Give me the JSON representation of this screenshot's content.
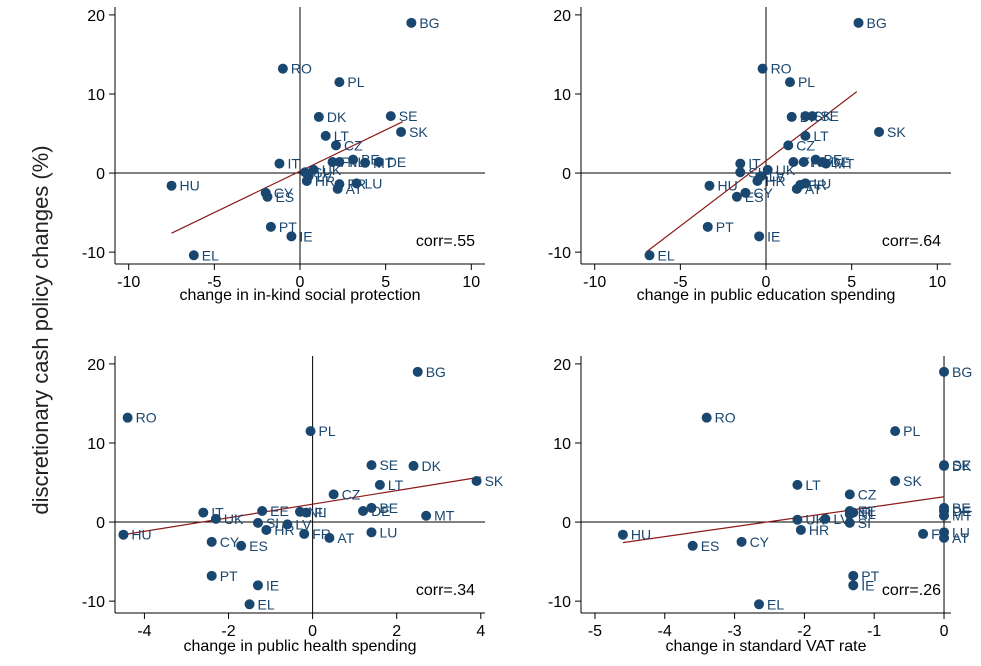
{
  "figure": {
    "ylabel": "discretionary cash policy changes (%)",
    "colors": {
      "point": "#1a476f",
      "fit": "#8b1a1a",
      "axis": "#000000",
      "label": "#1a476f"
    }
  },
  "chart_data": [
    {
      "type": "scatter",
      "xlabel": "change in in-kind social protection",
      "xlim": [
        -10.8,
        10.8
      ],
      "ylim": [
        -11.5,
        21
      ],
      "xticks": [
        -10,
        -5,
        0,
        5,
        10
      ],
      "yticks": [
        -10,
        0,
        10,
        20
      ],
      "annotation": "corr=.55",
      "fit_line": {
        "x": [
          -7.5,
          6.0
        ],
        "y": [
          -7.6,
          6.5
        ]
      },
      "points": [
        {
          "label": "BG",
          "x": 6.5,
          "y": 19.0
        },
        {
          "label": "RO",
          "x": -1.0,
          "y": 13.2
        },
        {
          "label": "PL",
          "x": 2.3,
          "y": 11.5
        },
        {
          "label": "DK",
          "x": 1.1,
          "y": 7.1
        },
        {
          "label": "SE",
          "x": 5.3,
          "y": 7.2
        },
        {
          "label": "SK",
          "x": 5.9,
          "y": 5.2
        },
        {
          "label": "LT",
          "x": 1.5,
          "y": 4.7
        },
        {
          "label": "CZ",
          "x": 2.1,
          "y": 3.5
        },
        {
          "label": "BE",
          "x": 3.1,
          "y": 1.7
        },
        {
          "label": "FI",
          "x": 1.9,
          "y": 1.4
        },
        {
          "label": "NL",
          "x": 2.3,
          "y": 1.4
        },
        {
          "label": "MT",
          "x": 3.8,
          "y": 1.3
        },
        {
          "label": "DE",
          "x": 4.6,
          "y": 1.4
        },
        {
          "label": "IT",
          "x": -1.2,
          "y": 1.2
        },
        {
          "label": "SI",
          "x": 0.3,
          "y": 0.1
        },
        {
          "label": "UK",
          "x": 0.8,
          "y": 0.4
        },
        {
          "label": "LV",
          "x": 0.5,
          "y": -0.4
        },
        {
          "label": "HR",
          "x": 0.4,
          "y": -1.0
        },
        {
          "label": "FR",
          "x": 2.3,
          "y": -1.4
        },
        {
          "label": "AT",
          "x": 2.2,
          "y": -2.0
        },
        {
          "label": "LU",
          "x": 3.3,
          "y": -1.3
        },
        {
          "label": "HU",
          "x": -7.5,
          "y": -1.6
        },
        {
          "label": "CY",
          "x": -2.0,
          "y": -2.5
        },
        {
          "label": "ES",
          "x": -1.9,
          "y": -3.0
        },
        {
          "label": "PT",
          "x": -1.7,
          "y": -6.8
        },
        {
          "label": "IE",
          "x": -0.5,
          "y": -8.0
        },
        {
          "label": "EL",
          "x": -6.2,
          "y": -10.4
        }
      ]
    },
    {
      "type": "scatter",
      "xlabel": "change in public education spending",
      "xlim": [
        -10.8,
        10.8
      ],
      "ylim": [
        -11.5,
        21
      ],
      "xticks": [
        -10,
        -5,
        0,
        5,
        10
      ],
      "yticks": [
        -10,
        0,
        10,
        20
      ],
      "annotation": "corr=.64",
      "fit_line": {
        "x": [
          -7.0,
          5.3
        ],
        "y": [
          -10.0,
          10.3
        ]
      },
      "points": [
        {
          "label": "BG",
          "x": 5.4,
          "y": 19.0
        },
        {
          "label": "RO",
          "x": -0.2,
          "y": 13.2
        },
        {
          "label": "PL",
          "x": 1.4,
          "y": 11.5
        },
        {
          "label": "DK",
          "x": 1.5,
          "y": 7.1
        },
        {
          "label": "SK",
          "x": 2.3,
          "y": 7.2
        },
        {
          "label": "SE",
          "x": 2.7,
          "y": 7.2
        },
        {
          "label": "SK",
          "x": 6.6,
          "y": 5.2
        },
        {
          "label": "LT",
          "x": 2.3,
          "y": 4.7
        },
        {
          "label": "CZ",
          "x": 1.3,
          "y": 3.5
        },
        {
          "label": "BE",
          "x": 2.9,
          "y": 1.7
        },
        {
          "label": "FI",
          "x": 1.6,
          "y": 1.4
        },
        {
          "label": "NL",
          "x": 2.2,
          "y": 1.4
        },
        {
          "label": "MT",
          "x": 3.5,
          "y": 1.2
        },
        {
          "label": "DE",
          "x": 3.3,
          "y": 1.4
        },
        {
          "label": "IT",
          "x": -1.5,
          "y": 1.2
        },
        {
          "label": "SI",
          "x": -1.5,
          "y": 0.1
        },
        {
          "label": "UK",
          "x": 0.1,
          "y": 0.4
        },
        {
          "label": "LV",
          "x": -0.3,
          "y": -0.4
        },
        {
          "label": "HR",
          "x": -0.5,
          "y": -1.0
        },
        {
          "label": "FR",
          "x": 2.0,
          "y": -1.5
        },
        {
          "label": "AT",
          "x": 1.8,
          "y": -2.0
        },
        {
          "label": "LU",
          "x": 2.3,
          "y": -1.3
        },
        {
          "label": "HU",
          "x": -3.3,
          "y": -1.6
        },
        {
          "label": "CY",
          "x": -1.2,
          "y": -2.5
        },
        {
          "label": "ES",
          "x": -1.7,
          "y": -3.0
        },
        {
          "label": "PT",
          "x": -3.4,
          "y": -6.8
        },
        {
          "label": "IE",
          "x": -0.4,
          "y": -8.0
        },
        {
          "label": "EL",
          "x": -6.8,
          "y": -10.4
        }
      ]
    },
    {
      "type": "scatter",
      "xlabel": "change in public health spending",
      "xlim": [
        -4.7,
        4.1
      ],
      "ylim": [
        -11.5,
        21
      ],
      "xticks": [
        -4,
        -2,
        0,
        2,
        4
      ],
      "yticks": [
        -10,
        0,
        10,
        20
      ],
      "annotation": "corr=.34",
      "fit_line": {
        "x": [
          -4.5,
          4.0
        ],
        "y": [
          -1.6,
          5.7
        ]
      },
      "points": [
        {
          "label": "BG",
          "x": 2.5,
          "y": 19.0
        },
        {
          "label": "RO",
          "x": -4.4,
          "y": 13.2
        },
        {
          "label": "PL",
          "x": -0.05,
          "y": 11.5
        },
        {
          "label": "SE",
          "x": 1.4,
          "y": 7.2
        },
        {
          "label": "DK",
          "x": 2.4,
          "y": 7.1
        },
        {
          "label": "SK",
          "x": 3.9,
          "y": 5.2
        },
        {
          "label": "LT",
          "x": 1.6,
          "y": 4.7
        },
        {
          "label": "CZ",
          "x": 0.5,
          "y": 3.5
        },
        {
          "label": "BE",
          "x": 1.4,
          "y": 1.8
        },
        {
          "label": "DE",
          "x": 1.2,
          "y": 1.4
        },
        {
          "label": "MT",
          "x": 2.7,
          "y": 0.8
        },
        {
          "label": "EE",
          "x": -1.2,
          "y": 1.4
        },
        {
          "label": "NL",
          "x": -0.3,
          "y": 1.3
        },
        {
          "label": "FI",
          "x": -0.15,
          "y": 1.2
        },
        {
          "label": "IT",
          "x": -2.6,
          "y": 1.2
        },
        {
          "label": "UK",
          "x": -2.3,
          "y": 0.4
        },
        {
          "label": "SI",
          "x": -1.3,
          "y": -0.1
        },
        {
          "label": "LV",
          "x": -0.6,
          "y": -0.3
        },
        {
          "label": "HR",
          "x": -1.1,
          "y": -1.0
        },
        {
          "label": "FR",
          "x": -0.2,
          "y": -1.5
        },
        {
          "label": "AT",
          "x": 0.4,
          "y": -2.0
        },
        {
          "label": "LU",
          "x": 1.4,
          "y": -1.3
        },
        {
          "label": "HU",
          "x": -4.5,
          "y": -1.6
        },
        {
          "label": "CY",
          "x": -2.4,
          "y": -2.5
        },
        {
          "label": "ES",
          "x": -1.7,
          "y": -3.0
        },
        {
          "label": "PT",
          "x": -2.4,
          "y": -6.8
        },
        {
          "label": "IE",
          "x": -1.3,
          "y": -8.0
        },
        {
          "label": "EL",
          "x": -1.5,
          "y": -10.4
        }
      ]
    },
    {
      "type": "scatter",
      "xlabel": "change in standard VAT rate",
      "xlim": [
        -5.2,
        0.1
      ],
      "ylim": [
        -11.5,
        21
      ],
      "xticks": [
        -5,
        -4,
        -3,
        -2,
        -1,
        0
      ],
      "yticks": [
        -10,
        0,
        10,
        20
      ],
      "annotation": "corr=.26",
      "fit_line": {
        "x": [
          -4.6,
          0.0
        ],
        "y": [
          -2.6,
          3.2
        ]
      },
      "points": [
        {
          "label": "BG",
          "x": 0.0,
          "y": 19.0
        },
        {
          "label": "RO",
          "x": -3.4,
          "y": 13.2
        },
        {
          "label": "PL",
          "x": -0.7,
          "y": 11.5
        },
        {
          "label": "DK",
          "x": 0.0,
          "y": 7.1
        },
        {
          "label": "SE",
          "x": 0.0,
          "y": 7.2
        },
        {
          "label": "SK",
          "x": -0.7,
          "y": 5.2
        },
        {
          "label": "LT",
          "x": -2.1,
          "y": 4.7
        },
        {
          "label": "CZ",
          "x": -1.35,
          "y": 3.5
        },
        {
          "label": "BE",
          "x": 0.0,
          "y": 1.8
        },
        {
          "label": "DE",
          "x": 0.0,
          "y": 1.4
        },
        {
          "label": "MT",
          "x": 0.0,
          "y": 0.8
        },
        {
          "label": "EE",
          "x": -1.35,
          "y": 1.4
        },
        {
          "label": "FI",
          "x": -1.3,
          "y": 1.2
        },
        {
          "label": "NL",
          "x": -1.35,
          "y": 1.0
        },
        {
          "label": "UK",
          "x": -2.1,
          "y": 0.3
        },
        {
          "label": "LV",
          "x": -1.7,
          "y": 0.4
        },
        {
          "label": "SI",
          "x": -1.35,
          "y": -0.1
        },
        {
          "label": "HR",
          "x": -2.05,
          "y": -1.0
        },
        {
          "label": "FR",
          "x": -0.3,
          "y": -1.5
        },
        {
          "label": "LU",
          "x": 0.0,
          "y": -1.3
        },
        {
          "label": "AT",
          "x": 0.0,
          "y": -2.0
        },
        {
          "label": "HU",
          "x": -4.6,
          "y": -1.6
        },
        {
          "label": "ES",
          "x": -3.6,
          "y": -3.0
        },
        {
          "label": "CY",
          "x": -2.9,
          "y": -2.5
        },
        {
          "label": "PT",
          "x": -1.3,
          "y": -6.8
        },
        {
          "label": "IE",
          "x": -1.3,
          "y": -8.0
        },
        {
          "label": "EL",
          "x": -2.65,
          "y": -10.4
        }
      ]
    }
  ]
}
